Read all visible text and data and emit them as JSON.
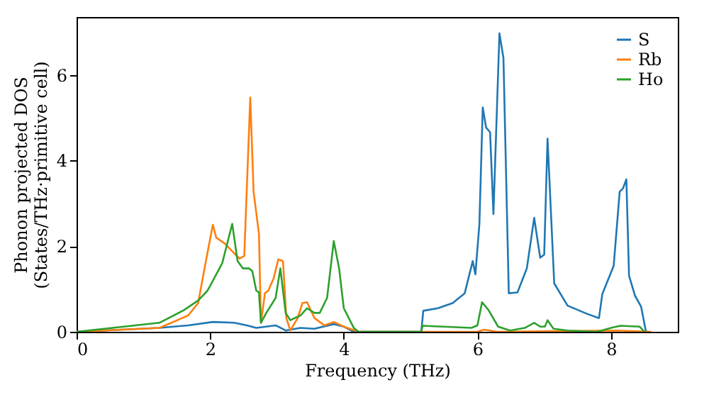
{
  "chart_data": {
    "type": "line",
    "xlabel": "Frequency (THz)",
    "ylabel": "Phonon projected DOS\n(States/THz·primitive cell)",
    "xlim": [
      0,
      9.0
    ],
    "ylim": [
      0,
      7.35
    ],
    "xticks": [
      0,
      2,
      4,
      6,
      8
    ],
    "yticks": [
      0,
      2,
      4,
      6
    ],
    "grid": false,
    "legend": "top right",
    "marker": "none",
    "line_style": "solid",
    "series": [
      {
        "name": "S",
        "color": "#1f77b4",
        "x": [
          0,
          1.24,
          1.67,
          2.04,
          2.36,
          2.55,
          2.69,
          2.98,
          3.13,
          3.35,
          3.56,
          3.85,
          4.0,
          4.15,
          5.16,
          5.19,
          5.41,
          5.63,
          5.81,
          5.93,
          5.97,
          6.03,
          6.08,
          6.13,
          6.19,
          6.24,
          6.33,
          6.39,
          6.47,
          6.6,
          6.74,
          6.85,
          6.94,
          7.0,
          7.05,
          7.15,
          7.35,
          7.64,
          7.82,
          7.87,
          8.04,
          8.13,
          8.18,
          8.23,
          8.27,
          8.36,
          8.45,
          8.52,
          8.54
        ],
        "values": [
          0,
          0.09,
          0.15,
          0.23,
          0.21,
          0.15,
          0.09,
          0.15,
          0.03,
          0.09,
          0.07,
          0.18,
          0.12,
          0,
          0,
          0.49,
          0.55,
          0.67,
          0.9,
          1.65,
          1.34,
          2.52,
          5.24,
          4.77,
          4.66,
          2.75,
          6.97,
          6.39,
          0.9,
          0.92,
          1.48,
          2.66,
          1.73,
          1.8,
          4.51,
          1.13,
          0.61,
          0.42,
          0.32,
          0.88,
          1.54,
          3.27,
          3.35,
          3.56,
          1.31,
          0.84,
          0.59,
          0.03,
          0
        ]
      },
      {
        "name": "Rb",
        "color": "#ff7f0e",
        "x": [
          0,
          1.24,
          1.67,
          1.82,
          1.93,
          2.04,
          2.09,
          2.22,
          2.36,
          2.44,
          2.51,
          2.6,
          2.65,
          2.73,
          2.76,
          2.82,
          2.87,
          2.95,
          3.02,
          3.09,
          3.14,
          3.2,
          3.31,
          3.38,
          3.45,
          3.56,
          3.71,
          3.85,
          4.0,
          4.22,
          6.0,
          6.1,
          6.3,
          8.1,
          8.6
        ],
        "values": [
          0,
          0.09,
          0.38,
          0.67,
          1.6,
          2.5,
          2.2,
          2.06,
          1.83,
          1.71,
          1.77,
          5.47,
          3.27,
          2.29,
          0.21,
          0.9,
          0.96,
          1.25,
          1.69,
          1.65,
          0.32,
          0.03,
          0.32,
          0.67,
          0.69,
          0.32,
          0.15,
          0.23,
          0.12,
          0,
          0,
          0.05,
          0,
          0.03,
          0
        ]
      },
      {
        "name": "Ho",
        "color": "#2ca02c",
        "x": [
          0,
          1.24,
          1.6,
          1.82,
          1.96,
          2.18,
          2.33,
          2.41,
          2.49,
          2.58,
          2.63,
          2.69,
          2.73,
          2.76,
          2.84,
          2.98,
          3.05,
          3.13,
          3.2,
          3.35,
          3.45,
          3.56,
          3.64,
          3.75,
          3.85,
          3.93,
          4.0,
          4.15,
          4.22,
          5.16,
          5.18,
          5.91,
          6.0,
          6.07,
          6.17,
          6.31,
          6.49,
          6.71,
          6.85,
          6.94,
          7.01,
          7.05,
          7.14,
          7.35,
          7.78,
          7.86,
          8.0,
          8.14,
          8.43,
          8.5
        ],
        "values": [
          0,
          0.21,
          0.5,
          0.73,
          0.96,
          1.6,
          2.52,
          1.65,
          1.48,
          1.48,
          1.42,
          0.96,
          0.92,
          0.21,
          0.44,
          0.79,
          1.48,
          0.44,
          0.27,
          0.38,
          0.55,
          0.44,
          0.44,
          0.79,
          2.12,
          1.48,
          0.55,
          0.09,
          0,
          0,
          0.14,
          0.09,
          0.15,
          0.69,
          0.5,
          0.12,
          0.03,
          0.09,
          0.21,
          0.12,
          0.12,
          0.27,
          0.07,
          0.03,
          0,
          0.03,
          0.09,
          0.14,
          0.12,
          0
        ]
      }
    ]
  }
}
